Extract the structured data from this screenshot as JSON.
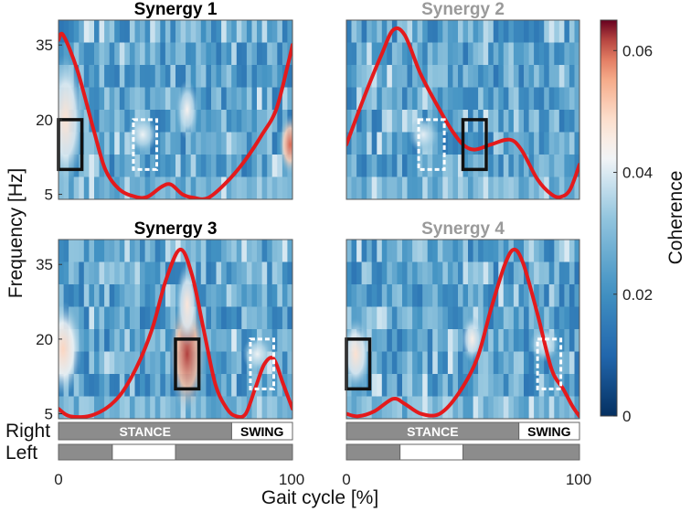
{
  "chart_data": {
    "type": "heatmap",
    "xlabel": "Gait cycle [%]",
    "ylabel": "Frequency [Hz]",
    "x_range": [
      0,
      100
    ],
    "y_range": [
      4,
      40
    ],
    "xticks": [
      "0",
      "100"
    ],
    "yticks": [
      35,
      20,
      5
    ],
    "colorbar": {
      "label": "Coherence",
      "ticks": [
        "0",
        "0.02",
        "0.04",
        "0.06"
      ],
      "range": [
        0,
        0.065
      ]
    },
    "gait_bars": {
      "right": {
        "label": "Right",
        "stance": "STANCE",
        "swing": "SWING",
        "swing_start": 74
      },
      "left": {
        "label": "Left",
        "swing_start": 23,
        "swing_end": 50
      }
    },
    "panels": [
      {
        "title": "Synergy 1",
        "title_highlight": true,
        "curve_y": [
          [
            0,
            36
          ],
          [
            2,
            37
          ],
          [
            8,
            30
          ],
          [
            15,
            18
          ],
          [
            20,
            10
          ],
          [
            26,
            6
          ],
          [
            33,
            4.5
          ],
          [
            38,
            4.5
          ],
          [
            44,
            6.5
          ],
          [
            48,
            7
          ],
          [
            53,
            5
          ],
          [
            58,
            4.3
          ],
          [
            64,
            4.3
          ],
          [
            72,
            7.5
          ],
          [
            80,
            12
          ],
          [
            87,
            17
          ],
          [
            93,
            22
          ],
          [
            98,
            31
          ],
          [
            100,
            35
          ]
        ],
        "solid_box": {
          "x": [
            0,
            10
          ],
          "y": [
            10,
            20
          ]
        },
        "dashed_box": {
          "x": [
            32,
            42
          ],
          "y": [
            10,
            20
          ]
        },
        "hotspots": [
          {
            "x": 3,
            "y": 20,
            "level": 0.048,
            "rx": 5,
            "ry": 11
          },
          {
            "x": 99,
            "y": 15,
            "level": 0.06,
            "rx": 3,
            "ry": 5
          },
          {
            "x": 55,
            "y": 22,
            "level": 0.044,
            "rx": 3,
            "ry": 5
          },
          {
            "x": 36,
            "y": 17,
            "level": 0.042,
            "rx": 4,
            "ry": 3
          }
        ]
      },
      {
        "title": "Synergy 2",
        "title_highlight": false,
        "curve_y": [
          [
            0,
            15
          ],
          [
            8,
            25
          ],
          [
            15,
            33
          ],
          [
            20,
            38
          ],
          [
            25,
            37
          ],
          [
            32,
            29
          ],
          [
            40,
            22
          ],
          [
            45,
            18
          ],
          [
            50,
            15
          ],
          [
            55,
            14
          ],
          [
            62,
            15
          ],
          [
            70,
            16
          ],
          [
            75,
            14
          ],
          [
            82,
            8
          ],
          [
            88,
            5
          ],
          [
            92,
            4.5
          ],
          [
            96,
            6
          ],
          [
            100,
            11
          ]
        ],
        "solid_box": {
          "x": [
            50,
            60
          ],
          "y": [
            10,
            20
          ]
        },
        "dashed_box": {
          "x": [
            31,
            42
          ],
          "y": [
            10,
            20
          ]
        },
        "hotspots": [
          {
            "x": 33,
            "y": 17,
            "level": 0.041,
            "rx": 4,
            "ry": 3
          }
        ]
      },
      {
        "title": "Synergy 3",
        "title_highlight": true,
        "curve_y": [
          [
            0,
            6
          ],
          [
            5,
            4.5
          ],
          [
            15,
            4.8
          ],
          [
            25,
            8
          ],
          [
            33,
            14
          ],
          [
            40,
            22
          ],
          [
            46,
            32
          ],
          [
            52,
            38
          ],
          [
            57,
            33
          ],
          [
            62,
            22
          ],
          [
            67,
            11
          ],
          [
            72,
            6
          ],
          [
            76,
            4.5
          ],
          [
            80,
            5
          ],
          [
            84,
            10
          ],
          [
            88,
            15
          ],
          [
            92,
            16
          ],
          [
            96,
            11
          ],
          [
            100,
            6
          ]
        ],
        "solid_box": {
          "x": [
            50,
            60
          ],
          "y": [
            10,
            20
          ]
        },
        "dashed_box": {
          "x": [
            82,
            92
          ],
          "y": [
            10,
            20
          ]
        },
        "hotspots": [
          {
            "x": 2,
            "y": 18,
            "level": 0.05,
            "rx": 5,
            "ry": 8
          },
          {
            "x": 55,
            "y": 17,
            "level": 0.062,
            "rx": 5,
            "ry": 10
          },
          {
            "x": 55,
            "y": 27,
            "level": 0.047,
            "rx": 3,
            "ry": 7
          },
          {
            "x": 85,
            "y": 17,
            "level": 0.042,
            "rx": 4,
            "ry": 3
          }
        ]
      },
      {
        "title": "Synergy 4",
        "title_highlight": false,
        "curve_y": [
          [
            0,
            5
          ],
          [
            5,
            4.5
          ],
          [
            12,
            5.5
          ],
          [
            20,
            8
          ],
          [
            25,
            7
          ],
          [
            32,
            5
          ],
          [
            40,
            5
          ],
          [
            48,
            9
          ],
          [
            56,
            16
          ],
          [
            62,
            26
          ],
          [
            68,
            35
          ],
          [
            72,
            38
          ],
          [
            76,
            35
          ],
          [
            82,
            25
          ],
          [
            88,
            14
          ],
          [
            93,
            10
          ],
          [
            97,
            6.5
          ],
          [
            100,
            4.5
          ]
        ],
        "solid_box": {
          "x": [
            0,
            10
          ],
          "y": [
            10,
            20
          ]
        },
        "dashed_box": {
          "x": [
            82,
            92
          ],
          "y": [
            10,
            20
          ]
        },
        "hotspots": [
          {
            "x": 4,
            "y": 17,
            "level": 0.048,
            "rx": 4,
            "ry": 6
          },
          {
            "x": 54,
            "y": 20,
            "level": 0.045,
            "rx": 3,
            "ry": 4
          },
          {
            "x": 85,
            "y": 19,
            "level": 0.042,
            "rx": 4,
            "ry": 3
          }
        ]
      }
    ]
  }
}
